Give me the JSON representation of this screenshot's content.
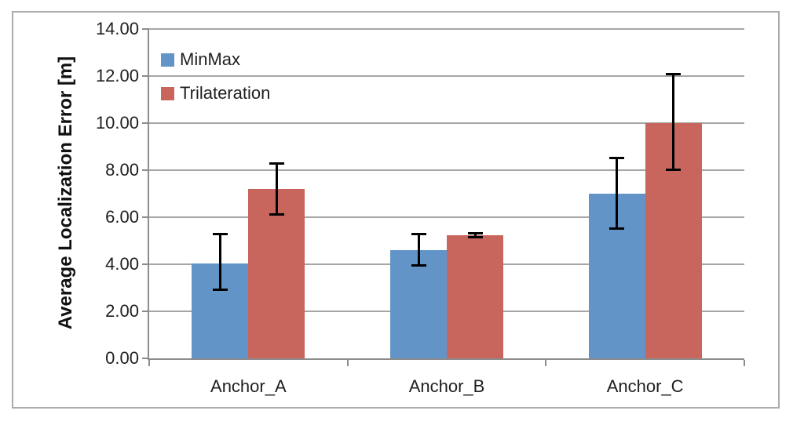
{
  "chart_data": {
    "type": "bar",
    "title": "",
    "xlabel": "",
    "ylabel": "Average Localization Error [m]",
    "categories": [
      "Anchor_A",
      "Anchor_B",
      "Anchor_C"
    ],
    "series": [
      {
        "name": "MinMax",
        "color": "#6294c8",
        "values": [
          4.05,
          4.6,
          7.0
        ],
        "error_low": [
          2.9,
          3.95,
          5.5
        ],
        "error_high": [
          5.3,
          5.3,
          8.55
        ]
      },
      {
        "name": "Trilateration",
        "color": "#c8665e",
        "values": [
          7.2,
          5.25,
          10.0
        ],
        "error_low": [
          6.1,
          5.15,
          8.0
        ],
        "error_high": [
          8.3,
          5.35,
          12.1
        ]
      }
    ],
    "ylim": [
      0,
      14
    ],
    "ytick_step": 2,
    "ytick_decimals": 2,
    "grid": true,
    "legend_position": "top-left-inside",
    "colors": {
      "gridline": "#a6a6a6",
      "axis": "#8c8c8c",
      "frame_border": "#ababab",
      "error_bar": "#000000",
      "text": "#1f1f1f"
    }
  }
}
